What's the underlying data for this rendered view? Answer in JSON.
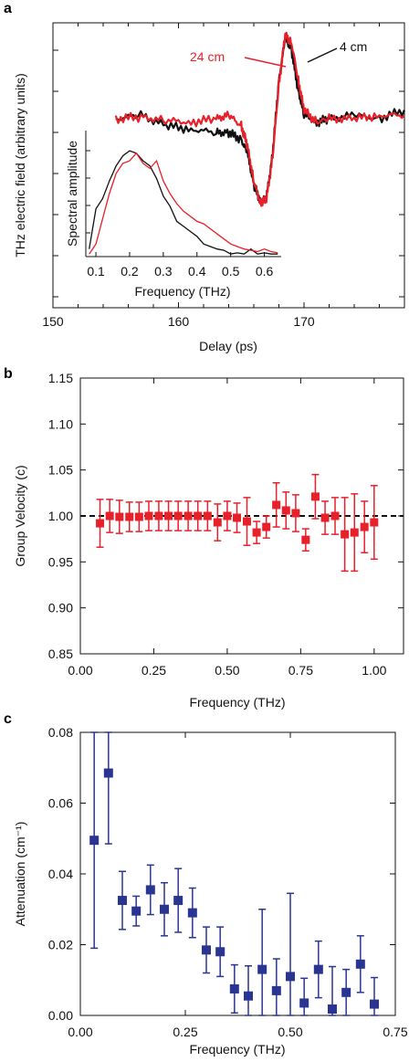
{
  "colors": {
    "black": "#111111",
    "red": "#e8202a",
    "blue": "#2a3591"
  },
  "chart_data": [
    {
      "panel": "a",
      "type": "line",
      "xlabel": "Delay (ps)",
      "ylabel": "THz electric field (arbitrary units)",
      "xlim": [
        150,
        178
      ],
      "x_ticks": [
        "150",
        "160",
        "170"
      ],
      "series": [
        {
          "name": "4 cm",
          "color": "black",
          "x": [
            155,
            157,
            159,
            161,
            163,
            164,
            165,
            165.5,
            166,
            166.5,
            167,
            167.5,
            168,
            168.5,
            169,
            169.5,
            170,
            171,
            172,
            174,
            176,
            178
          ],
          "y": [
            0.5,
            0.52,
            0.46,
            0.44,
            0.42,
            0.42,
            0.38,
            0.3,
            0.12,
            0.03,
            0.04,
            0.3,
            0.72,
            0.96,
            0.9,
            0.68,
            0.52,
            0.48,
            0.5,
            0.52,
            0.5,
            0.55
          ]
        },
        {
          "name": "24 cm",
          "color": "red",
          "x": [
            155,
            157,
            159,
            161,
            163,
            164,
            165,
            165.5,
            166,
            166.5,
            167,
            167.5,
            168,
            168.5,
            169,
            169.5,
            170,
            171,
            172,
            174,
            176,
            178
          ],
          "y": [
            0.5,
            0.51,
            0.49,
            0.48,
            0.5,
            0.52,
            0.46,
            0.34,
            0.14,
            0.02,
            0.03,
            0.28,
            0.7,
            0.98,
            0.94,
            0.74,
            0.55,
            0.48,
            0.5,
            0.5,
            0.52,
            0.52
          ]
        }
      ],
      "annotations": [
        "24 cm",
        "4 cm"
      ],
      "inset": {
        "type": "line",
        "xlabel": "Frequency (THz)",
        "ylabel": "Spectral amplitude",
        "xlim": [
          0.07,
          0.65
        ],
        "x_ticks": [
          "0.1",
          "0.2",
          "0.3",
          "0.4",
          "0.5",
          "0.6"
        ],
        "series": [
          {
            "name": "4 cm",
            "color": "black",
            "x": [
              0.08,
              0.1,
              0.12,
              0.14,
              0.16,
              0.18,
              0.2,
              0.22,
              0.24,
              0.26,
              0.28,
              0.3,
              0.32,
              0.34,
              0.36,
              0.38,
              0.4,
              0.42,
              0.44,
              0.46,
              0.48,
              0.5,
              0.52,
              0.54,
              0.56,
              0.58,
              0.6,
              0.62,
              0.64
            ],
            "y": [
              0.06,
              0.38,
              0.46,
              0.6,
              0.72,
              0.8,
              0.84,
              0.82,
              0.76,
              0.72,
              0.62,
              0.48,
              0.4,
              0.28,
              0.24,
              0.2,
              0.16,
              0.1,
              0.08,
              0.06,
              0.05,
              0.02,
              0.03,
              0.02,
              0.06,
              0.02,
              0.03,
              0.02,
              0.02
            ]
          },
          {
            "name": "24 cm",
            "color": "red",
            "x": [
              0.08,
              0.1,
              0.12,
              0.14,
              0.16,
              0.18,
              0.2,
              0.22,
              0.24,
              0.26,
              0.28,
              0.3,
              0.32,
              0.34,
              0.36,
              0.38,
              0.4,
              0.42,
              0.44,
              0.46,
              0.48,
              0.5,
              0.52,
              0.54,
              0.56,
              0.58,
              0.6,
              0.62,
              0.64
            ],
            "y": [
              0.02,
              0.1,
              0.3,
              0.5,
              0.66,
              0.74,
              0.76,
              0.82,
              0.74,
              0.7,
              0.76,
              0.6,
              0.5,
              0.42,
              0.36,
              0.32,
              0.28,
              0.26,
              0.22,
              0.18,
              0.14,
              0.1,
              0.08,
              0.06,
              0.05,
              0.04,
              0.06,
              0.04,
              0.03
            ]
          }
        ]
      }
    },
    {
      "panel": "b",
      "type": "scatter",
      "xlabel": "Frequency (THz)",
      "ylabel": "Group Velocity (c)",
      "xlim": [
        0,
        1.1
      ],
      "ylim": [
        0.85,
        1.15
      ],
      "x_ticks": [
        "0.00",
        "0.25",
        "0.50",
        "0.75",
        "1.00"
      ],
      "y_ticks": [
        "0.85",
        "0.90",
        "0.95",
        "1.00",
        "1.05",
        "1.10",
        "1.15"
      ],
      "reference_line": 1.0,
      "series": [
        {
          "name": "",
          "color": "red",
          "x": [
            0.067,
            0.1,
            0.133,
            0.167,
            0.2,
            0.233,
            0.267,
            0.3,
            0.333,
            0.367,
            0.4,
            0.433,
            0.467,
            0.5,
            0.533,
            0.567,
            0.6,
            0.633,
            0.667,
            0.7,
            0.733,
            0.767,
            0.8,
            0.833,
            0.867,
            0.9,
            0.933,
            0.967,
            1.0
          ],
          "y": [
            0.992,
            1.0,
            0.999,
            0.999,
            0.999,
            1.0,
            1.0,
            1.0,
            1.0,
            1.0,
            1.0,
            1.0,
            0.993,
            1.0,
            0.998,
            0.994,
            0.982,
            0.988,
            1.012,
            1.006,
            1.003,
            0.974,
            1.021,
            0.998,
            1.0,
            0.98,
            0.982,
            0.988,
            0.993
          ],
          "err": [
            0.026,
            0.018,
            0.018,
            0.016,
            0.016,
            0.016,
            0.016,
            0.016,
            0.016,
            0.016,
            0.016,
            0.016,
            0.02,
            0.016,
            0.016,
            0.026,
            0.012,
            0.012,
            0.024,
            0.02,
            0.02,
            0.012,
            0.024,
            0.018,
            0.02,
            0.04,
            0.042,
            0.028,
            0.04
          ]
        }
      ]
    },
    {
      "panel": "c",
      "type": "scatter",
      "xlabel": "Frequency (THz)",
      "ylabel": "Attenuation (cm⁻¹)",
      "xlim": [
        0,
        0.75
      ],
      "ylim": [
        0,
        0.08
      ],
      "x_ticks": [
        "0.00",
        "0.25",
        "0.50",
        "0.75"
      ],
      "y_ticks": [
        "0.00",
        "0.02",
        "0.04",
        "0.06",
        "0.08"
      ],
      "series": [
        {
          "name": "",
          "color": "blue",
          "x": [
            0.033,
            0.067,
            0.1,
            0.133,
            0.167,
            0.2,
            0.233,
            0.267,
            0.3,
            0.333,
            0.367,
            0.4,
            0.433,
            0.467,
            0.5,
            0.533,
            0.567,
            0.6,
            0.633,
            0.667,
            0.7
          ],
          "y": [
            0.0495,
            0.0685,
            0.0325,
            0.0295,
            0.0355,
            0.03,
            0.0325,
            0.029,
            0.0185,
            0.018,
            0.0075,
            0.0055,
            0.013,
            0.007,
            0.011,
            0.0035,
            0.013,
            0.0018,
            0.0065,
            0.0145,
            0.0032
          ],
          "err": [
            0.0305,
            0.02,
            0.0082,
            0.0042,
            0.007,
            0.0075,
            0.009,
            0.007,
            0.0065,
            0.007,
            0.0068,
            0.0085,
            0.017,
            0.009,
            0.0235,
            0.007,
            0.008,
            0.012,
            0.0065,
            0.008,
            0.0075
          ]
        }
      ]
    }
  ]
}
